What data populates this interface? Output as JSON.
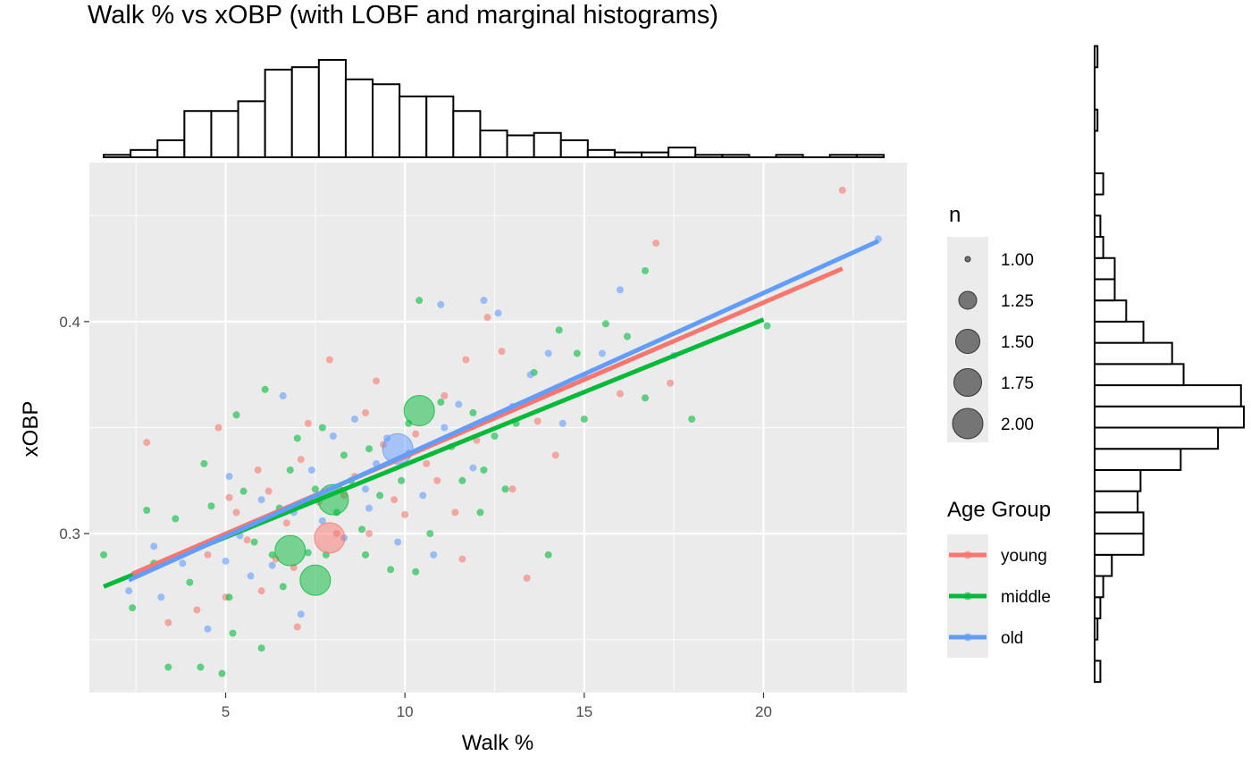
{
  "chart_data": {
    "type": "scatter",
    "title": "Walk % vs xOBP (with LOBF and marginal histograms)",
    "xlabel": "Walk %",
    "ylabel": "xOBP",
    "xlim": [
      1.2,
      24.0
    ],
    "ylim": [
      0.225,
      0.475
    ],
    "x_ticks": [
      5,
      10,
      15,
      20
    ],
    "x_tick_labels": [
      "5",
      "10",
      "15",
      "20"
    ],
    "y_ticks": [
      0.3,
      0.4
    ],
    "y_tick_labels": [
      "0.3",
      "0.4"
    ],
    "grid": true,
    "size_legend": {
      "title": "n",
      "values": [
        1.0,
        1.25,
        1.5,
        1.75,
        2.0
      ],
      "labels": [
        "1.00",
        "1.25",
        "1.50",
        "1.75",
        "2.00"
      ]
    },
    "color_legend": {
      "title": "Age Group",
      "position": "right"
    },
    "series": [
      {
        "name": "young",
        "color": "#F8766D",
        "lobf": {
          "x": [
            2.4,
            22.2
          ],
          "y": [
            0.281,
            0.425
          ]
        },
        "points": [
          [
            2.8,
            0.343
          ],
          [
            3.4,
            0.258
          ],
          [
            4.2,
            0.264
          ],
          [
            4.5,
            0.29
          ],
          [
            4.8,
            0.35
          ],
          [
            5.0,
            0.27
          ],
          [
            5.3,
            0.31
          ],
          [
            5.6,
            0.297
          ],
          [
            5.9,
            0.33
          ],
          [
            6.2,
            0.32
          ],
          [
            6.4,
            0.288
          ],
          [
            6.7,
            0.305
          ],
          [
            6.9,
            0.284
          ],
          [
            7.1,
            0.335
          ],
          [
            7.3,
            0.352
          ],
          [
            7.6,
            0.315
          ],
          [
            7.9,
            0.382
          ],
          [
            8.1,
            0.3
          ],
          [
            8.3,
            0.318
          ],
          [
            8.6,
            0.327
          ],
          [
            8.9,
            0.357
          ],
          [
            9.2,
            0.372
          ],
          [
            9.4,
            0.342
          ],
          [
            9.7,
            0.316
          ],
          [
            10.0,
            0.309
          ],
          [
            10.3,
            0.347
          ],
          [
            10.6,
            0.333
          ],
          [
            10.9,
            0.325
          ],
          [
            11.1,
            0.365
          ],
          [
            11.4,
            0.31
          ],
          [
            11.7,
            0.382
          ],
          [
            12.0,
            0.344
          ],
          [
            12.3,
            0.402
          ],
          [
            12.7,
            0.386
          ],
          [
            13.0,
            0.321
          ],
          [
            13.4,
            0.279
          ],
          [
            13.7,
            0.353
          ],
          [
            14.2,
            0.337
          ],
          [
            16.0,
            0.366
          ],
          [
            17.0,
            0.437
          ],
          [
            17.4,
            0.371
          ],
          [
            22.2,
            0.462
          ],
          [
            6.0,
            0.273
          ],
          [
            5.1,
            0.317
          ],
          [
            7.0,
            0.256
          ],
          [
            9.0,
            0.3
          ],
          [
            11.6,
            0.288
          ]
        ],
        "big_points": [
          {
            "x": 7.9,
            "y": 0.298,
            "n": 2.0
          }
        ]
      },
      {
        "name": "middle",
        "color": "#00BA38",
        "lobf": {
          "x": [
            1.6,
            20.0
          ],
          "y": [
            0.275,
            0.401
          ]
        },
        "points": [
          [
            1.6,
            0.29
          ],
          [
            2.4,
            0.265
          ],
          [
            2.8,
            0.311
          ],
          [
            3.4,
            0.237
          ],
          [
            3.6,
            0.307
          ],
          [
            4.0,
            0.277
          ],
          [
            4.3,
            0.237
          ],
          [
            4.4,
            0.333
          ],
          [
            4.6,
            0.313
          ],
          [
            4.9,
            0.234
          ],
          [
            5.1,
            0.27
          ],
          [
            5.2,
            0.253
          ],
          [
            5.5,
            0.32
          ],
          [
            5.8,
            0.296
          ],
          [
            6.0,
            0.246
          ],
          [
            6.1,
            0.368
          ],
          [
            6.3,
            0.29
          ],
          [
            6.5,
            0.312
          ],
          [
            6.8,
            0.33
          ],
          [
            7.0,
            0.345
          ],
          [
            7.3,
            0.291
          ],
          [
            7.5,
            0.321
          ],
          [
            7.7,
            0.35
          ],
          [
            7.8,
            0.29
          ],
          [
            8.1,
            0.31
          ],
          [
            8.3,
            0.337
          ],
          [
            8.5,
            0.325
          ],
          [
            8.8,
            0.302
          ],
          [
            9.0,
            0.34
          ],
          [
            9.3,
            0.318
          ],
          [
            9.6,
            0.283
          ],
          [
            9.9,
            0.325
          ],
          [
            10.1,
            0.352
          ],
          [
            10.4,
            0.41
          ],
          [
            10.7,
            0.3
          ],
          [
            11.0,
            0.362
          ],
          [
            11.3,
            0.341
          ],
          [
            11.6,
            0.325
          ],
          [
            11.9,
            0.357
          ],
          [
            12.2,
            0.33
          ],
          [
            12.5,
            0.346
          ],
          [
            12.8,
            0.321
          ],
          [
            13.1,
            0.352
          ],
          [
            13.6,
            0.376
          ],
          [
            14.0,
            0.29
          ],
          [
            14.3,
            0.396
          ],
          [
            14.8,
            0.385
          ],
          [
            15.0,
            0.354
          ],
          [
            15.6,
            0.399
          ],
          [
            16.2,
            0.393
          ],
          [
            16.7,
            0.364
          ],
          [
            16.7,
            0.424
          ],
          [
            18.0,
            0.354
          ],
          [
            20.1,
            0.398
          ],
          [
            3.0,
            0.286
          ],
          [
            5.3,
            0.356
          ],
          [
            6.6,
            0.275
          ],
          [
            8.9,
            0.29
          ],
          [
            10.3,
            0.282
          ],
          [
            12.1,
            0.31
          ]
        ],
        "big_points": [
          {
            "x": 10.4,
            "y": 0.358,
            "n": 2.0
          },
          {
            "x": 8.0,
            "y": 0.316,
            "n": 2.0
          },
          {
            "x": 6.8,
            "y": 0.292,
            "n": 2.0
          },
          {
            "x": 7.5,
            "y": 0.278,
            "n": 2.0
          }
        ]
      },
      {
        "name": "old",
        "color": "#619CFF",
        "lobf": {
          "x": [
            2.3,
            23.2
          ],
          "y": [
            0.278,
            0.438
          ]
        },
        "points": [
          [
            2.3,
            0.273
          ],
          [
            3.0,
            0.294
          ],
          [
            3.2,
            0.27
          ],
          [
            3.8,
            0.286
          ],
          [
            4.5,
            0.255
          ],
          [
            5.1,
            0.327
          ],
          [
            5.4,
            0.299
          ],
          [
            5.7,
            0.28
          ],
          [
            6.0,
            0.316
          ],
          [
            6.3,
            0.285
          ],
          [
            6.6,
            0.365
          ],
          [
            6.9,
            0.31
          ],
          [
            7.1,
            0.262
          ],
          [
            7.4,
            0.33
          ],
          [
            7.7,
            0.306
          ],
          [
            8.0,
            0.346
          ],
          [
            8.3,
            0.298
          ],
          [
            8.6,
            0.354
          ],
          [
            8.9,
            0.321
          ],
          [
            9.2,
            0.333
          ],
          [
            9.5,
            0.345
          ],
          [
            9.8,
            0.296
          ],
          [
            10.1,
            0.338
          ],
          [
            10.5,
            0.318
          ],
          [
            10.8,
            0.29
          ],
          [
            11.1,
            0.35
          ],
          [
            11.5,
            0.361
          ],
          [
            11.9,
            0.331
          ],
          [
            12.2,
            0.41
          ],
          [
            12.6,
            0.404
          ],
          [
            13.0,
            0.36
          ],
          [
            13.5,
            0.375
          ],
          [
            14.0,
            0.385
          ],
          [
            14.4,
            0.352
          ],
          [
            15.0,
            0.374
          ],
          [
            15.5,
            0.385
          ],
          [
            16.0,
            0.415
          ],
          [
            17.5,
            0.384
          ],
          [
            23.2,
            0.439
          ],
          [
            11.0,
            0.408
          ],
          [
            9.0,
            0.312
          ],
          [
            5.0,
            0.287
          ]
        ],
        "big_points": [
          {
            "x": 9.8,
            "y": 0.34,
            "n": 2.0
          }
        ]
      }
    ],
    "marginal_x_histogram": {
      "bin_edges_start": 1.6,
      "bin_width": 0.75,
      "counts": [
        1,
        3,
        7,
        19,
        19,
        23,
        36,
        37,
        40,
        32,
        30,
        25,
        25,
        19,
        11,
        9,
        10,
        7,
        3,
        2,
        2,
        4,
        1,
        1,
        0,
        1,
        0,
        1,
        1
      ]
    },
    "marginal_y_histogram": {
      "bin_edges_start": 0.23,
      "bin_width": 0.01,
      "counts": [
        2,
        0,
        1,
        2,
        3,
        6,
        17,
        17,
        15,
        16,
        30,
        43,
        52,
        51,
        31,
        27,
        17,
        11,
        7,
        7,
        3,
        2,
        0,
        3,
        0,
        0,
        1,
        0,
        0,
        1
      ]
    }
  }
}
